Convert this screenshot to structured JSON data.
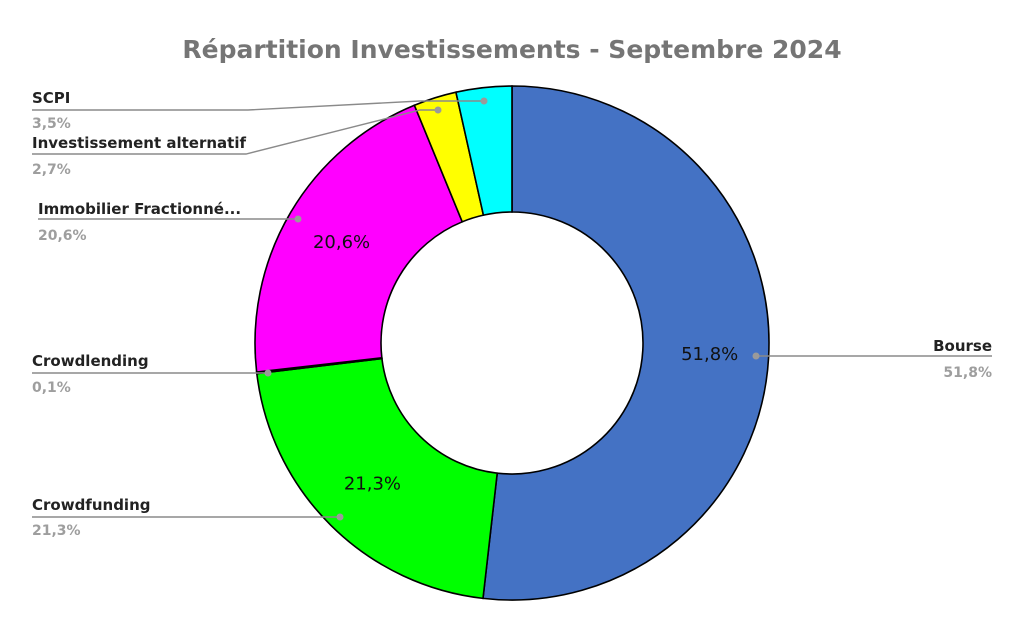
{
  "chart_data": {
    "type": "pie",
    "title": "Répartition Investissements - Septembre 2024",
    "donut": true,
    "start": "top",
    "direction": "clockwise",
    "slices": [
      {
        "label": "Bourse",
        "value": 51.8,
        "display": "51,8%",
        "color": "#4472c4",
        "inner_label": "51,8%",
        "side": "right"
      },
      {
        "label": "Crowdfunding",
        "value": 21.3,
        "display": "21,3%",
        "color": "#00ff00",
        "inner_label": "21,3%",
        "side": "left"
      },
      {
        "label": "Crowdlending",
        "value": 0.1,
        "display": "0,1%",
        "color": "#e6e6e6",
        "inner_label": "",
        "side": "left"
      },
      {
        "label": "Immobilier Fractionné...",
        "value": 20.6,
        "display": "20,6%",
        "color": "#ff00ff",
        "inner_label": "20,6%",
        "side": "left"
      },
      {
        "label": "Investissement alternatif",
        "value": 2.7,
        "display": "2,7%",
        "color": "#ffff00",
        "inner_label": "",
        "side": "left"
      },
      {
        "label": "SCPI",
        "value": 3.5,
        "display": "3,5%",
        "color": "#00ffff",
        "inner_label": "",
        "side": "left"
      }
    ]
  }
}
